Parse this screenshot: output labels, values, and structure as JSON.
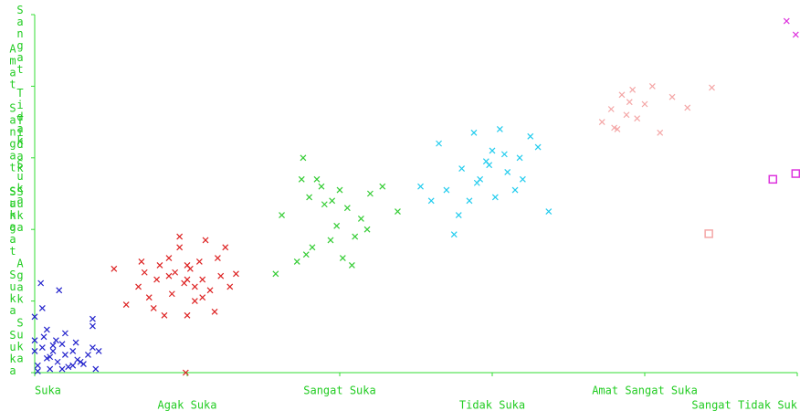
{
  "chart_data": {
    "type": "scatter",
    "xticks": [
      {
        "value": 0,
        "label": "Suka"
      },
      {
        "value": 1,
        "label": "Agak Suka"
      },
      {
        "value": 2,
        "label": "Sangat Suka"
      },
      {
        "value": 3,
        "label": "Tidak Suka"
      },
      {
        "value": 4,
        "label": "Amat Sangat Suka"
      },
      {
        "value": 5,
        "label": "Sangat Tidak Suk"
      }
    ],
    "yticks": [
      {
        "value": 0,
        "label": "Suka"
      },
      {
        "value": 1,
        "label": "Agak Suka"
      },
      {
        "value": 2,
        "label": "Sangat Suka"
      },
      {
        "value": 3,
        "label": "Tidak Suka"
      },
      {
        "value": 4,
        "label": "Amat Sangat Suka"
      },
      {
        "value": 5,
        "label": "Sangat Tidak Suka"
      }
    ],
    "xlim": [
      0,
      5
    ],
    "ylim": [
      0,
      5
    ],
    "axis_color": "#33dd33",
    "series": [
      {
        "color": "#2222cc",
        "marker": "x",
        "x": [
          0.0,
          0.02,
          0.05,
          0.08,
          0.1,
          0.12,
          0.15,
          0.18,
          0.2,
          0.22,
          0.25,
          0.28,
          0.32,
          0.35,
          0.38,
          0.4,
          0.42,
          0.06,
          0.14,
          0.2,
          0.05,
          0.04,
          0.16,
          0.38,
          0.38,
          0.0,
          0.3,
          0.1,
          0.02,
          0.25,
          0.08,
          0.12,
          0.18,
          0.0,
          0.27
        ],
        "y": [
          0.3,
          0.1,
          0.35,
          0.2,
          0.05,
          0.3,
          0.15,
          0.4,
          0.25,
          0.08,
          0.3,
          0.18,
          0.12,
          0.25,
          0.35,
          0.05,
          0.3,
          0.5,
          0.45,
          0.55,
          0.9,
          1.25,
          1.15,
          0.65,
          0.75,
          0.78,
          0.15,
          0.22,
          0.02,
          0.1,
          0.6,
          0.38,
          0.05,
          0.45,
          0.42
        ]
      },
      {
        "color": "#dd2222",
        "marker": "x",
        "x": [
          0.52,
          0.6,
          0.68,
          0.72,
          0.75,
          0.8,
          0.85,
          0.88,
          0.9,
          0.95,
          0.98,
          1.0,
          1.02,
          1.05,
          1.08,
          1.1,
          1.12,
          1.15,
          1.18,
          1.2,
          1.22,
          1.25,
          1.28,
          1.32,
          0.7,
          0.82,
          0.92,
          1.0,
          1.1,
          0.78,
          0.95,
          1.05,
          0.99,
          1.0,
          0.88
        ],
        "y": [
          1.45,
          0.95,
          1.2,
          1.4,
          1.05,
          1.3,
          0.8,
          1.6,
          1.1,
          1.75,
          1.25,
          0.8,
          1.45,
          1.0,
          1.55,
          1.3,
          1.85,
          1.15,
          0.85,
          1.6,
          1.35,
          1.75,
          1.2,
          1.38,
          1.55,
          1.5,
          1.4,
          1.3,
          1.05,
          0.9,
          1.9,
          1.2,
          0.0,
          1.5,
          1.35
        ]
      },
      {
        "color": "#33cc33",
        "marker": "x",
        "x": [
          1.58,
          1.62,
          1.72,
          1.76,
          1.8,
          1.82,
          1.85,
          1.9,
          1.94,
          1.98,
          2.0,
          2.02,
          2.05,
          2.1,
          2.14,
          2.18,
          2.2,
          2.28,
          2.38,
          1.78,
          1.88,
          2.08,
          1.95,
          1.75
        ],
        "y": [
          1.38,
          2.2,
          1.55,
          3.0,
          2.45,
          1.75,
          2.7,
          2.35,
          1.85,
          2.05,
          2.55,
          1.6,
          2.3,
          1.9,
          2.15,
          2.0,
          2.5,
          2.6,
          2.25,
          1.65,
          2.6,
          1.5,
          2.4,
          2.7
        ]
      },
      {
        "color": "#22ccee",
        "marker": "x",
        "x": [
          2.53,
          2.6,
          2.65,
          2.7,
          2.75,
          2.8,
          2.85,
          2.88,
          2.92,
          2.96,
          3.0,
          3.02,
          3.05,
          3.1,
          3.15,
          3.18,
          3.2,
          3.25,
          3.3,
          3.37,
          2.78,
          2.9,
          3.08,
          2.98
        ],
        "y": [
          2.6,
          2.4,
          3.2,
          2.55,
          1.93,
          2.85,
          2.4,
          3.35,
          2.7,
          2.95,
          3.1,
          2.45,
          3.4,
          2.8,
          2.55,
          3.0,
          2.7,
          3.3,
          3.15,
          2.25,
          2.2,
          2.65,
          3.05,
          2.9
        ]
      },
      {
        "color": "#f4a6a6",
        "marker": "x",
        "x": [
          3.72,
          3.78,
          3.82,
          3.85,
          3.88,
          3.92,
          4.0,
          4.05,
          4.1,
          4.18,
          4.28,
          4.44,
          3.8,
          3.9,
          3.95
        ],
        "y": [
          3.5,
          3.68,
          3.4,
          3.88,
          3.6,
          3.95,
          3.75,
          4.0,
          3.35,
          3.85,
          3.7,
          3.98,
          3.42,
          3.78,
          3.55
        ]
      },
      {
        "color": "#dd33dd",
        "marker": "x",
        "x": [
          4.93,
          4.99
        ],
        "y": [
          4.91,
          4.72
        ]
      },
      {
        "color": "#dd33dd",
        "marker": "square",
        "x": [
          4.84,
          4.99
        ],
        "y": [
          2.7,
          2.78
        ]
      },
      {
        "color": "#f4a6a6",
        "marker": "square",
        "x": [
          4.42
        ],
        "y": [
          1.94
        ]
      }
    ]
  }
}
